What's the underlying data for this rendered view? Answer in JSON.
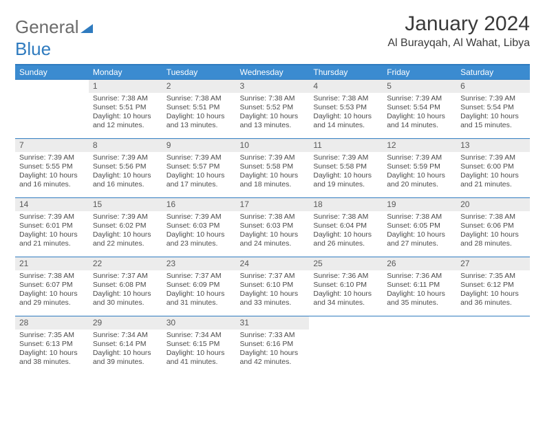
{
  "brand": {
    "part1": "General",
    "part2": "Blue"
  },
  "title": "January 2024",
  "location": "Al Burayqah, Al Wahat, Libya",
  "colors": {
    "header_bg": "#3b8bd0",
    "header_text": "#ffffff",
    "accent_line": "#2f7bbf",
    "daynum_bg": "#ececec",
    "text": "#4a4a4a",
    "brand_gray": "#6b6b6b",
    "brand_blue": "#2f7bbf"
  },
  "weekdays": [
    "Sunday",
    "Monday",
    "Tuesday",
    "Wednesday",
    "Thursday",
    "Friday",
    "Saturday"
  ],
  "first_weekday_index": 1,
  "days": [
    {
      "n": 1,
      "sunrise": "7:38 AM",
      "sunset": "5:51 PM",
      "daylight": "10 hours and 12 minutes."
    },
    {
      "n": 2,
      "sunrise": "7:38 AM",
      "sunset": "5:51 PM",
      "daylight": "10 hours and 13 minutes."
    },
    {
      "n": 3,
      "sunrise": "7:38 AM",
      "sunset": "5:52 PM",
      "daylight": "10 hours and 13 minutes."
    },
    {
      "n": 4,
      "sunrise": "7:38 AM",
      "sunset": "5:53 PM",
      "daylight": "10 hours and 14 minutes."
    },
    {
      "n": 5,
      "sunrise": "7:39 AM",
      "sunset": "5:54 PM",
      "daylight": "10 hours and 14 minutes."
    },
    {
      "n": 6,
      "sunrise": "7:39 AM",
      "sunset": "5:54 PM",
      "daylight": "10 hours and 15 minutes."
    },
    {
      "n": 7,
      "sunrise": "7:39 AM",
      "sunset": "5:55 PM",
      "daylight": "10 hours and 16 minutes."
    },
    {
      "n": 8,
      "sunrise": "7:39 AM",
      "sunset": "5:56 PM",
      "daylight": "10 hours and 16 minutes."
    },
    {
      "n": 9,
      "sunrise": "7:39 AM",
      "sunset": "5:57 PM",
      "daylight": "10 hours and 17 minutes."
    },
    {
      "n": 10,
      "sunrise": "7:39 AM",
      "sunset": "5:58 PM",
      "daylight": "10 hours and 18 minutes."
    },
    {
      "n": 11,
      "sunrise": "7:39 AM",
      "sunset": "5:58 PM",
      "daylight": "10 hours and 19 minutes."
    },
    {
      "n": 12,
      "sunrise": "7:39 AM",
      "sunset": "5:59 PM",
      "daylight": "10 hours and 20 minutes."
    },
    {
      "n": 13,
      "sunrise": "7:39 AM",
      "sunset": "6:00 PM",
      "daylight": "10 hours and 21 minutes."
    },
    {
      "n": 14,
      "sunrise": "7:39 AM",
      "sunset": "6:01 PM",
      "daylight": "10 hours and 21 minutes."
    },
    {
      "n": 15,
      "sunrise": "7:39 AM",
      "sunset": "6:02 PM",
      "daylight": "10 hours and 22 minutes."
    },
    {
      "n": 16,
      "sunrise": "7:39 AM",
      "sunset": "6:03 PM",
      "daylight": "10 hours and 23 minutes."
    },
    {
      "n": 17,
      "sunrise": "7:38 AM",
      "sunset": "6:03 PM",
      "daylight": "10 hours and 24 minutes."
    },
    {
      "n": 18,
      "sunrise": "7:38 AM",
      "sunset": "6:04 PM",
      "daylight": "10 hours and 26 minutes."
    },
    {
      "n": 19,
      "sunrise": "7:38 AM",
      "sunset": "6:05 PM",
      "daylight": "10 hours and 27 minutes."
    },
    {
      "n": 20,
      "sunrise": "7:38 AM",
      "sunset": "6:06 PM",
      "daylight": "10 hours and 28 minutes."
    },
    {
      "n": 21,
      "sunrise": "7:38 AM",
      "sunset": "6:07 PM",
      "daylight": "10 hours and 29 minutes."
    },
    {
      "n": 22,
      "sunrise": "7:37 AM",
      "sunset": "6:08 PM",
      "daylight": "10 hours and 30 minutes."
    },
    {
      "n": 23,
      "sunrise": "7:37 AM",
      "sunset": "6:09 PM",
      "daylight": "10 hours and 31 minutes."
    },
    {
      "n": 24,
      "sunrise": "7:37 AM",
      "sunset": "6:10 PM",
      "daylight": "10 hours and 33 minutes."
    },
    {
      "n": 25,
      "sunrise": "7:36 AM",
      "sunset": "6:10 PM",
      "daylight": "10 hours and 34 minutes."
    },
    {
      "n": 26,
      "sunrise": "7:36 AM",
      "sunset": "6:11 PM",
      "daylight": "10 hours and 35 minutes."
    },
    {
      "n": 27,
      "sunrise": "7:35 AM",
      "sunset": "6:12 PM",
      "daylight": "10 hours and 36 minutes."
    },
    {
      "n": 28,
      "sunrise": "7:35 AM",
      "sunset": "6:13 PM",
      "daylight": "10 hours and 38 minutes."
    },
    {
      "n": 29,
      "sunrise": "7:34 AM",
      "sunset": "6:14 PM",
      "daylight": "10 hours and 39 minutes."
    },
    {
      "n": 30,
      "sunrise": "7:34 AM",
      "sunset": "6:15 PM",
      "daylight": "10 hours and 41 minutes."
    },
    {
      "n": 31,
      "sunrise": "7:33 AM",
      "sunset": "6:16 PM",
      "daylight": "10 hours and 42 minutes."
    }
  ],
  "labels": {
    "sunrise": "Sunrise:",
    "sunset": "Sunset:",
    "daylight": "Daylight:"
  }
}
